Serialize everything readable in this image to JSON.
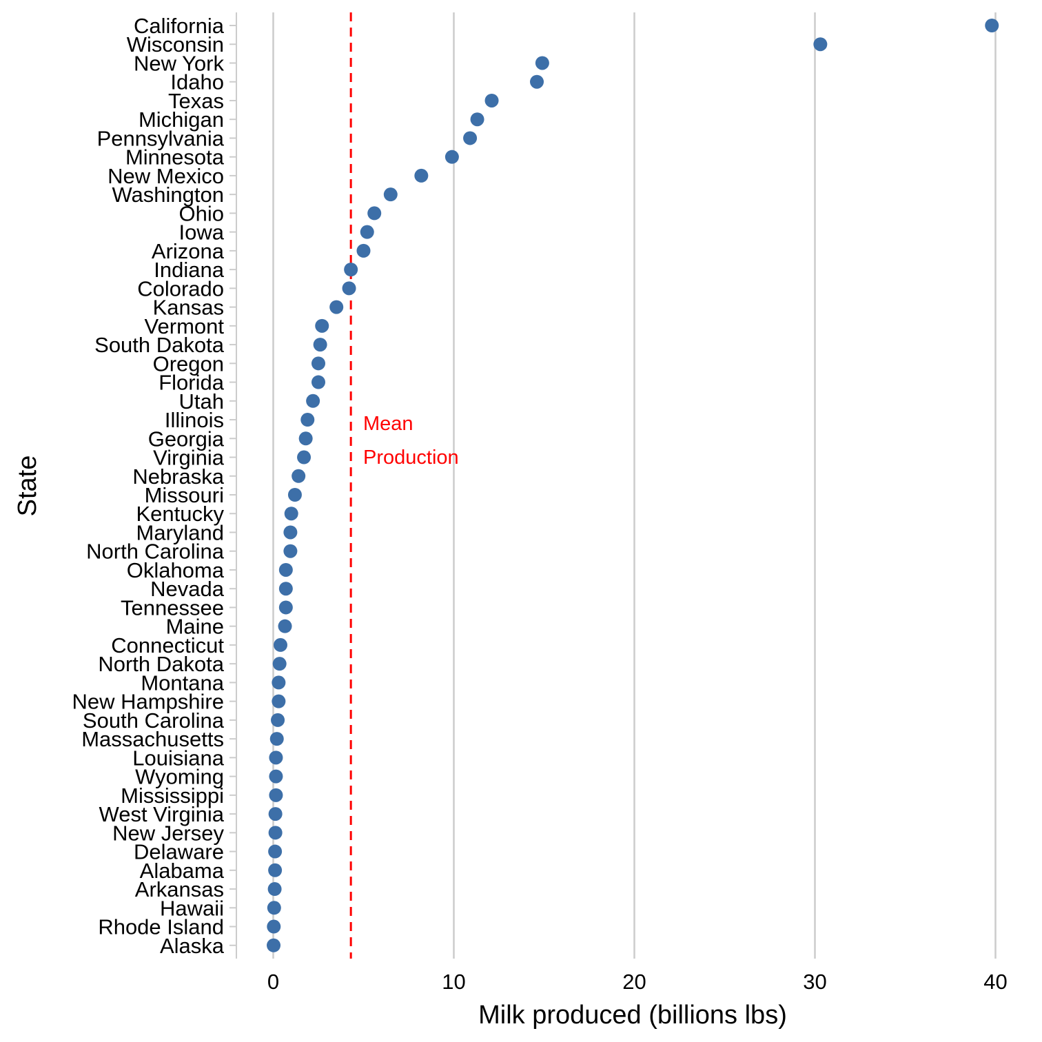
{
  "chart_data": {
    "type": "scatter",
    "xlabel": "Milk produced (billions lbs)",
    "ylabel": "State",
    "xlim": [
      -2,
      40.5
    ],
    "x_ticks": [
      0,
      10,
      20,
      30,
      40
    ],
    "grid": "vertical major gridlines",
    "point_color": "#3d6fa8",
    "mean_line": {
      "value": 4.3,
      "color": "#ff0000",
      "label_lines": [
        "Mean",
        "Production"
      ]
    },
    "categories": [
      "California",
      "Wisconsin",
      "New York",
      "Idaho",
      "Texas",
      "Michigan",
      "Pennsylvania",
      "Minnesota",
      "New Mexico",
      "Washington",
      "Ohio",
      "Iowa",
      "Arizona",
      "Indiana",
      "Colorado",
      "Kansas",
      "Vermont",
      "South Dakota",
      "Oregon",
      "Florida",
      "Utah",
      "Illinois",
      "Georgia",
      "Virginia",
      "Nebraska",
      "Missouri",
      "Kentucky",
      "Maryland",
      "North Carolina",
      "Oklahoma",
      "Nevada",
      "Tennessee",
      "Maine",
      "Connecticut",
      "North Dakota",
      "Montana",
      "New Hampshire",
      "South Carolina",
      "Massachusetts",
      "Louisiana",
      "Wyoming",
      "Mississippi",
      "West Virginia",
      "New Jersey",
      "Delaware",
      "Alabama",
      "Arkansas",
      "Hawaii",
      "Rhode Island",
      "Alaska"
    ],
    "values": [
      39.8,
      30.3,
      14.9,
      14.6,
      12.1,
      11.3,
      10.9,
      9.9,
      8.2,
      6.5,
      5.6,
      5.2,
      5.0,
      4.3,
      4.2,
      3.5,
      2.7,
      2.6,
      2.5,
      2.5,
      2.2,
      1.9,
      1.8,
      1.7,
      1.4,
      1.2,
      1.0,
      0.95,
      0.95,
      0.7,
      0.7,
      0.7,
      0.65,
      0.4,
      0.35,
      0.3,
      0.3,
      0.25,
      0.2,
      0.15,
      0.15,
      0.15,
      0.12,
      0.12,
      0.1,
      0.1,
      0.08,
      0.05,
      0.03,
      0.02
    ]
  }
}
